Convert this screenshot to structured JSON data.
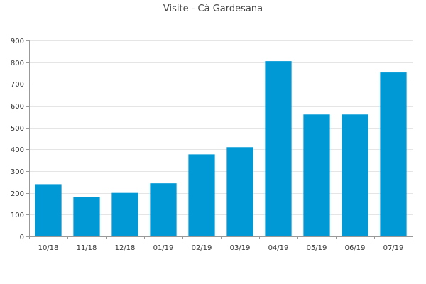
{
  "chart_data": {
    "type": "bar",
    "title": "Visite - Cà Gardesana",
    "xlabel": "",
    "ylabel": "",
    "categories": [
      "10/18",
      "11/18",
      "12/18",
      "01/19",
      "02/19",
      "03/19",
      "04/19",
      "05/19",
      "06/19",
      "07/19"
    ],
    "values": [
      240,
      182,
      200,
      244,
      377,
      410,
      805,
      560,
      560,
      753
    ],
    "ylim": [
      0,
      900
    ],
    "yticks": [
      0,
      100,
      200,
      300,
      400,
      500,
      600,
      700,
      800,
      900
    ],
    "grid": true,
    "legend": "none",
    "bar_color": "#0099d6",
    "grid_color": "#e5e5e5",
    "axis_color": "#999999"
  }
}
